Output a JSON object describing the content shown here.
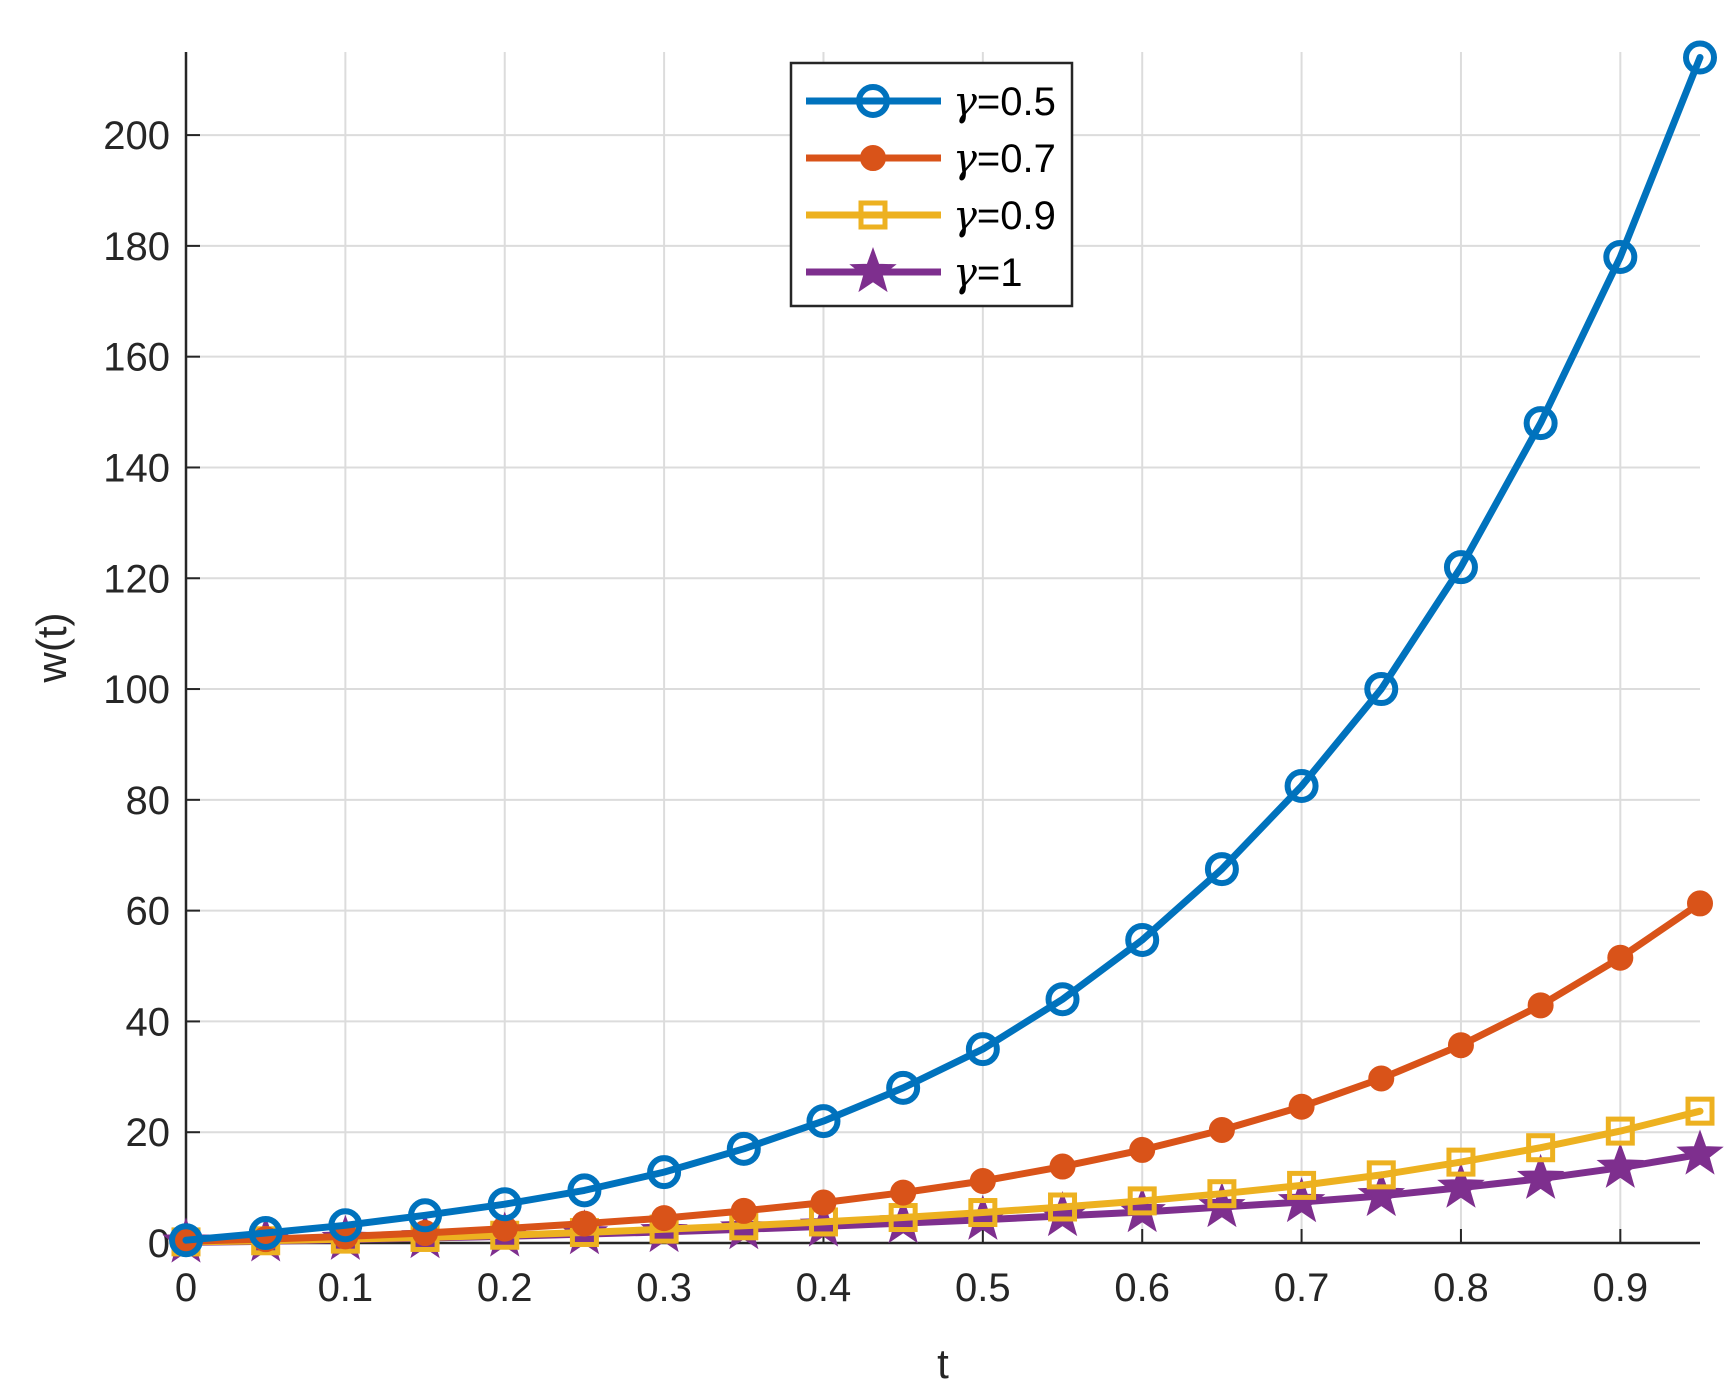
{
  "chart_data": {
    "type": "line",
    "title": "",
    "xlabel": "t",
    "ylabel": "w(t)",
    "xlim": [
      0,
      0.95
    ],
    "ylim": [
      0,
      215
    ],
    "x_ticks": [
      "0",
      "0.1",
      "0.2",
      "0.3",
      "0.4",
      "0.5",
      "0.6",
      "0.7",
      "0.8",
      "0.9"
    ],
    "y_ticks": [
      "0",
      "20",
      "40",
      "60",
      "80",
      "100",
      "120",
      "140",
      "160",
      "180",
      "200"
    ],
    "grid": true,
    "legend_position": "top-center",
    "x": [
      0,
      0.05,
      0.1,
      0.15,
      0.2,
      0.25,
      0.3,
      0.35,
      0.4,
      0.45,
      0.5,
      0.55,
      0.6,
      0.65,
      0.7,
      0.75,
      0.8,
      0.85,
      0.9,
      0.95
    ],
    "series": [
      {
        "name": "γ=0.5",
        "color": "#0072BD",
        "marker": "circle-open",
        "values": [
          0.5,
          1.8,
          3.2,
          5.0,
          7.0,
          9.5,
          12.8,
          17.0,
          22.0,
          28.0,
          35.0,
          44.0,
          54.7,
          67.5,
          82.5,
          100.0,
          122.0,
          148.0,
          178.0,
          214.0
        ]
      },
      {
        "name": "γ=0.7",
        "color": "#D95319",
        "marker": "circle-filled",
        "values": [
          0.3,
          0.7,
          1.2,
          1.8,
          2.6,
          3.5,
          4.5,
          5.8,
          7.3,
          9.1,
          11.2,
          13.8,
          16.8,
          20.4,
          24.6,
          29.7,
          35.7,
          42.9,
          51.5,
          61.3
        ]
      },
      {
        "name": "γ=0.9",
        "color": "#EDB120",
        "marker": "square-open",
        "values": [
          0.2,
          0.4,
          0.7,
          1.0,
          1.4,
          1.9,
          2.5,
          3.1,
          3.8,
          4.6,
          5.5,
          6.5,
          7.6,
          8.9,
          10.4,
          12.3,
          14.6,
          17.2,
          20.2,
          23.8
        ]
      },
      {
        "name": "γ=1",
        "color": "#7E2F8E",
        "marker": "star-filled",
        "values": [
          0.1,
          0.3,
          0.6,
          0.9,
          1.2,
          1.6,
          2.0,
          2.5,
          3.0,
          3.6,
          4.2,
          4.9,
          5.6,
          6.5,
          7.4,
          8.5,
          10.0,
          11.6,
          13.6,
          16.0
        ]
      }
    ]
  }
}
